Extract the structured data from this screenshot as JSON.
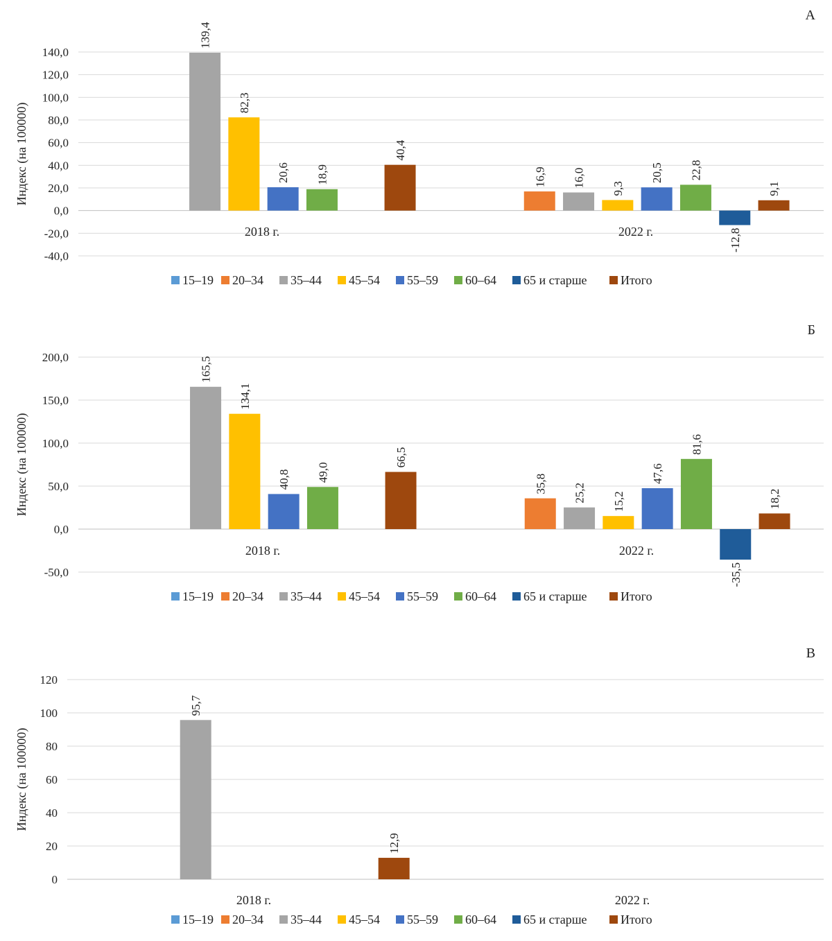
{
  "series_colors": [
    "#5B9BD5",
    "#ED7D31",
    "#A5A5A5",
    "#FFC000",
    "#4472C4",
    "#70AD47",
    "#1F5C99",
    "#9E480E"
  ],
  "legend": [
    "15–19",
    "20–34",
    "35–44",
    "45–54",
    "55–59",
    "60–64",
    "65 и старше",
    "Итого"
  ],
  "chart_data": [
    {
      "type": "bar",
      "panel_label": "А",
      "ylabel": "Индекс (на 100000)",
      "categories": [
        "2018 г.",
        "2022 г."
      ],
      "ylim": [
        -40,
        140
      ],
      "yticks": [
        "140,0",
        "120,0",
        "100,0",
        "80,0",
        "60,0",
        "40,0",
        "20,0",
        "0,0",
        "-20,0",
        "-40,0"
      ],
      "ytick_values": [
        140,
        120,
        100,
        80,
        60,
        40,
        20,
        0,
        -20,
        -40
      ],
      "series": [
        {
          "name": "15–19",
          "values": [
            null,
            null
          ],
          "labels": [
            "",
            ""
          ]
        },
        {
          "name": "20–34",
          "values": [
            null,
            16.9
          ],
          "labels": [
            "",
            "16,9"
          ]
        },
        {
          "name": "35–44",
          "values": [
            139.4,
            16.0
          ],
          "labels": [
            "139,4",
            "16,0"
          ]
        },
        {
          "name": "45–54",
          "values": [
            82.3,
            9.3
          ],
          "labels": [
            "82,3",
            "9,3"
          ]
        },
        {
          "name": "55–59",
          "values": [
            20.6,
            20.5
          ],
          "labels": [
            "20,6",
            "20,5"
          ]
        },
        {
          "name": "60–64",
          "values": [
            18.9,
            22.8
          ],
          "labels": [
            "18,9",
            "22,8"
          ]
        },
        {
          "name": "65 и старше",
          "values": [
            null,
            -12.8
          ],
          "labels": [
            "",
            "-12,8"
          ]
        },
        {
          "name": "Итого",
          "values": [
            40.4,
            9.1
          ],
          "labels": [
            "40,4",
            "9,1"
          ]
        }
      ],
      "grid": true,
      "legend_position": "bottom"
    },
    {
      "type": "bar",
      "panel_label": "Б",
      "ylabel": "Индекс (на 100000)",
      "categories": [
        "2018 г.",
        "2022 г."
      ],
      "ylim": [
        -50,
        200
      ],
      "yticks": [
        "200,0",
        "150,0",
        "100,0",
        "50,0",
        "0,0",
        "-50,0"
      ],
      "ytick_values": [
        200,
        150,
        100,
        50,
        0,
        -50
      ],
      "series": [
        {
          "name": "15–19",
          "values": [
            null,
            null
          ],
          "labels": [
            "",
            ""
          ]
        },
        {
          "name": "20–34",
          "values": [
            null,
            35.8
          ],
          "labels": [
            "",
            "35,8"
          ]
        },
        {
          "name": "35–44",
          "values": [
            165.5,
            25.2
          ],
          "labels": [
            "165,5",
            "25,2"
          ]
        },
        {
          "name": "45–54",
          "values": [
            134.1,
            15.2
          ],
          "labels": [
            "134,1",
            "15,2"
          ]
        },
        {
          "name": "55–59",
          "values": [
            40.8,
            47.6
          ],
          "labels": [
            "40,8",
            "47,6"
          ]
        },
        {
          "name": "60–64",
          "values": [
            49.0,
            81.6
          ],
          "labels": [
            "49,0",
            "81,6"
          ]
        },
        {
          "name": "65 и старше",
          "values": [
            null,
            -35.5
          ],
          "labels": [
            "",
            "-35,5"
          ]
        },
        {
          "name": "Итого",
          "values": [
            66.5,
            18.2
          ],
          "labels": [
            "66,5",
            "18,2"
          ]
        }
      ],
      "grid": true,
      "legend_position": "bottom"
    },
    {
      "type": "bar",
      "panel_label": "В",
      "ylabel": "Индекс (на 100000)",
      "categories": [
        "2018 г.",
        "2022 г."
      ],
      "ylim": [
        0,
        120
      ],
      "yticks": [
        "120",
        "100",
        "80",
        "60",
        "40",
        "20",
        "0"
      ],
      "ytick_values": [
        120,
        100,
        80,
        60,
        40,
        20,
        0
      ],
      "series": [
        {
          "name": "15–19",
          "values": [
            null,
            null
          ],
          "labels": [
            "",
            ""
          ]
        },
        {
          "name": "20–34",
          "values": [
            null,
            null
          ],
          "labels": [
            "",
            ""
          ]
        },
        {
          "name": "35–44",
          "values": [
            95.7,
            null
          ],
          "labels": [
            "95,7",
            ""
          ]
        },
        {
          "name": "45–54",
          "values": [
            null,
            null
          ],
          "labels": [
            "",
            ""
          ]
        },
        {
          "name": "55–59",
          "values": [
            null,
            null
          ],
          "labels": [
            "",
            ""
          ]
        },
        {
          "name": "60–64",
          "values": [
            null,
            null
          ],
          "labels": [
            "",
            ""
          ]
        },
        {
          "name": "65 и старше",
          "values": [
            null,
            null
          ],
          "labels": [
            "",
            ""
          ]
        },
        {
          "name": "Итого",
          "values": [
            12.9,
            null
          ],
          "labels": [
            "12,9",
            ""
          ]
        }
      ],
      "grid": true,
      "legend_position": "bottom"
    }
  ]
}
